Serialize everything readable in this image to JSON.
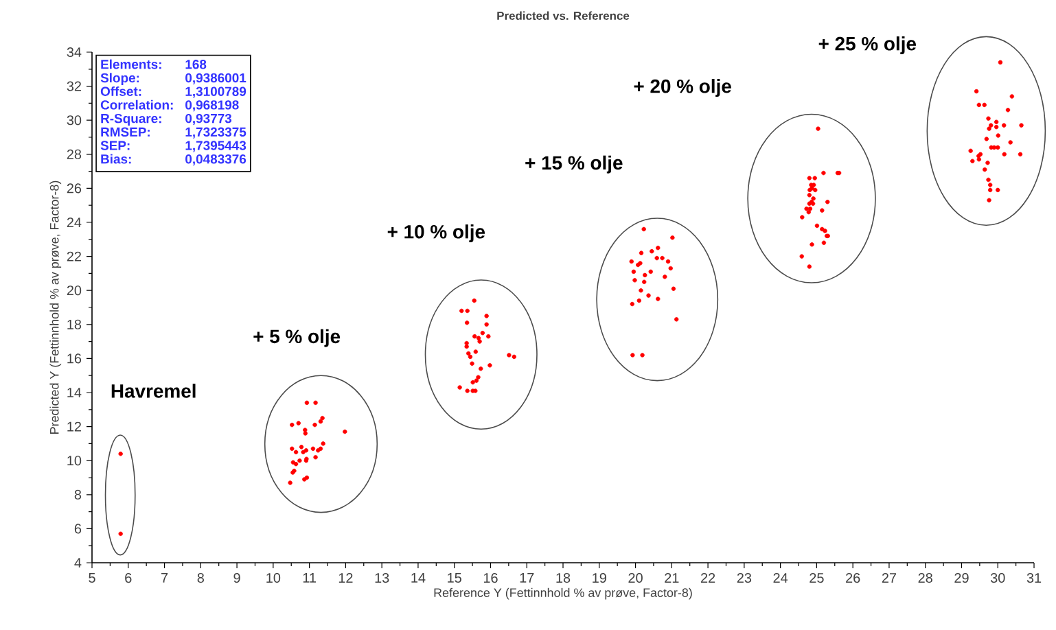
{
  "chart_data": {
    "type": "scatter",
    "title": "Predicted vs. Reference",
    "xlabel": "Reference Y (Fettinnhold % av prøve, Factor-8)",
    "ylabel": "Predicted Y (Fettinnhold % av prøve, Factor-8)",
    "xlim": [
      5,
      31
    ],
    "xticks": [
      5,
      6,
      7,
      8,
      9,
      10,
      11,
      12,
      13,
      14,
      15,
      16,
      17,
      18,
      19,
      20,
      21,
      22,
      23,
      24,
      25,
      26,
      27,
      28,
      29,
      30,
      31
    ],
    "ylim": [
      4,
      34
    ],
    "yticks": [
      4,
      6,
      8,
      10,
      12,
      14,
      16,
      18,
      20,
      22,
      24,
      26,
      28,
      30,
      32,
      34
    ],
    "annotations": [
      "Havremel",
      "+ 5 % olje",
      "+ 10 % olje",
      "+ 15 % olje",
      "+ 20 % olje",
      "+ 25 % olje",
      "Elements:",
      "168",
      "Slope:",
      "0,9386001",
      "Offset:",
      "1,3100789",
      "Correlation:",
      "0,968198",
      "R-Square:",
      "0,93773",
      "RMSEP:",
      "1,7323375",
      "SEP:",
      "1,7395443",
      "Bias:",
      "0,0483376"
    ],
    "series": [
      {
        "color": "#ff0000",
        "x": [
          5.79,
          5.79,
          10.93,
          11.17,
          10.52,
          10.7,
          11.36,
          11.31,
          11.15,
          10.88,
          10.89,
          11.98,
          10.78,
          10.52,
          10.63,
          10.91,
          10.83,
          11.1,
          11.24,
          11.31,
          11.38,
          11.17,
          10.92,
          10.73,
          10.55,
          10.63,
          10.91,
          10.58,
          10.54,
          10.93,
          10.86,
          10.47,
          15.55,
          15.2,
          15.36,
          15.89,
          15.35,
          15.89,
          15.78,
          15.56,
          15.67,
          15.94,
          15.7,
          15.34,
          15.34,
          15.59,
          15.39,
          15.44,
          16.51,
          16.65,
          15.49,
          15.98,
          15.73,
          15.66,
          15.61,
          15.51,
          15.15,
          15.36,
          15.51,
          15.58,
          20.23,
          21.02,
          20.62,
          20.45,
          20.16,
          19.89,
          20.59,
          20.74,
          20.07,
          20.13,
          20.9,
          19.95,
          20.42,
          20.26,
          20.97,
          20.81,
          19.98,
          20.24,
          21.05,
          20.15,
          20.36,
          20.62,
          20.1,
          19.91,
          21.13,
          19.92,
          20.19,
          25.04,
          25.58,
          25.62,
          25.19,
          24.8,
          24.95,
          24.85,
          24.92,
          24.87,
          24.81,
          24.96,
          24.8,
          24.91,
          24.86,
          25.3,
          24.8,
          24.9,
          24.72,
          24.82,
          24.78,
          25.15,
          24.6,
          25.01,
          25.15,
          25.23,
          25.28,
          25.31,
          25.2,
          24.87,
          24.59,
          24.8,
          30.07,
          29.41,
          30.39,
          29.48,
          29.63,
          30.28,
          29.74,
          29.96,
          29.81,
          30.17,
          30.65,
          29.96,
          29.76,
          30.01,
          29.69,
          30.35,
          29.82,
          29.9,
          30.0,
          29.25,
          29.52,
          29.47,
          30.18,
          30.62,
          29.48,
          29.3,
          29.72,
          29.64,
          29.74,
          29.79,
          29.79,
          30.0,
          29.76
        ],
        "values": [
          10.4,
          5.7,
          13.4,
          13.4,
          12.1,
          12.2,
          12.5,
          12.3,
          12.1,
          11.8,
          11.6,
          11.7,
          10.8,
          10.7,
          10.5,
          10.6,
          10.5,
          10.7,
          10.6,
          10.7,
          11.0,
          10.2,
          10.1,
          10.0,
          9.9,
          9.8,
          10.0,
          9.4,
          9.3,
          9.0,
          8.9,
          8.7,
          19.4,
          18.8,
          18.8,
          18.5,
          18.1,
          18.0,
          17.5,
          17.3,
          17.2,
          17.3,
          17.0,
          16.9,
          16.7,
          16.4,
          16.3,
          16.1,
          16.2,
          16.1,
          15.7,
          15.6,
          15.4,
          14.9,
          14.7,
          14.6,
          14.3,
          14.1,
          14.1,
          14.1,
          23.6,
          23.1,
          22.5,
          22.3,
          22.2,
          21.7,
          21.9,
          21.9,
          21.5,
          21.6,
          21.7,
          21.1,
          21.1,
          20.9,
          21.3,
          20.8,
          20.6,
          20.5,
          20.1,
          20.0,
          19.7,
          19.5,
          19.4,
          19.2,
          18.3,
          16.2,
          16.2,
          29.5,
          26.9,
          26.9,
          26.9,
          26.6,
          26.6,
          26.2,
          26.2,
          26.0,
          25.9,
          25.9,
          25.6,
          25.4,
          25.2,
          25.2,
          25.1,
          25.1,
          24.8,
          24.8,
          24.6,
          24.7,
          24.3,
          23.8,
          23.6,
          23.5,
          23.2,
          23.2,
          22.8,
          22.7,
          22.0,
          21.4,
          33.4,
          31.7,
          31.4,
          30.9,
          30.9,
          30.6,
          30.1,
          29.9,
          29.7,
          29.7,
          29.7,
          29.6,
          29.5,
          29.1,
          28.9,
          28.7,
          28.4,
          28.4,
          28.4,
          28.2,
          28.0,
          27.9,
          28.0,
          28.0,
          27.7,
          27.6,
          27.5,
          27.1,
          26.5,
          26.2,
          25.9,
          25.9,
          25.3
        ]
      }
    ]
  }
}
